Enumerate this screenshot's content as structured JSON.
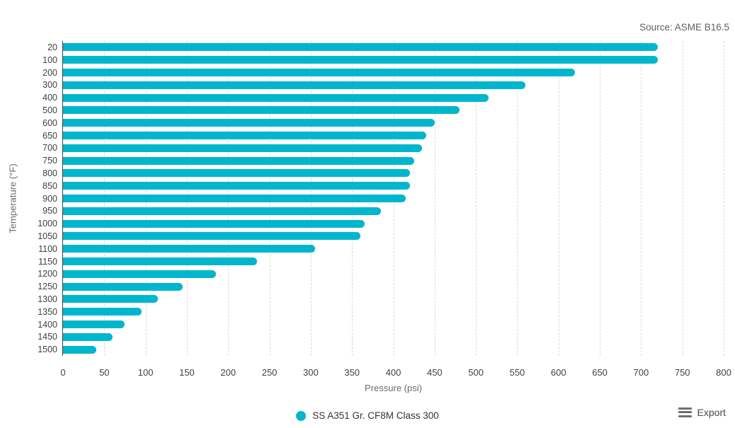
{
  "source_note": "Source: ASME B16.5",
  "chart_data": {
    "type": "bar",
    "orientation": "horizontal",
    "title": "",
    "xlabel": "Pressure (psi)",
    "ylabel": "Temperature (°F)",
    "xlim": [
      0,
      800
    ],
    "x_tick_step": 50,
    "grid": "vertical-dashed",
    "legend_position": "bottom-center",
    "categories": [
      20,
      100,
      200,
      300,
      400,
      500,
      600,
      650,
      700,
      750,
      800,
      850,
      900,
      950,
      1000,
      1050,
      1100,
      1150,
      1200,
      1250,
      1300,
      1350,
      1400,
      1450,
      1500
    ],
    "series": [
      {
        "name": "SS A351 Gr. CF8M Class 300",
        "color": "#00b6cd",
        "values": [
          720,
          720,
          620,
          560,
          515,
          480,
          450,
          440,
          435,
          425,
          420,
          420,
          415,
          385,
          365,
          360,
          305,
          235,
          185,
          145,
          115,
          95,
          75,
          60,
          40
        ]
      }
    ]
  },
  "legend": {
    "label": "SS A351 Gr. CF8M Class 300",
    "marker_color": "#00b6cd"
  },
  "toolbar": {
    "export_label": "Export"
  },
  "colors": {
    "bar": "#00b6cd",
    "axis_line": "#404040",
    "gridline": "#d9d9d9",
    "tick_label": "#404040",
    "axis_title": "#6b6b6b",
    "source_text": "#5f5f5f"
  }
}
